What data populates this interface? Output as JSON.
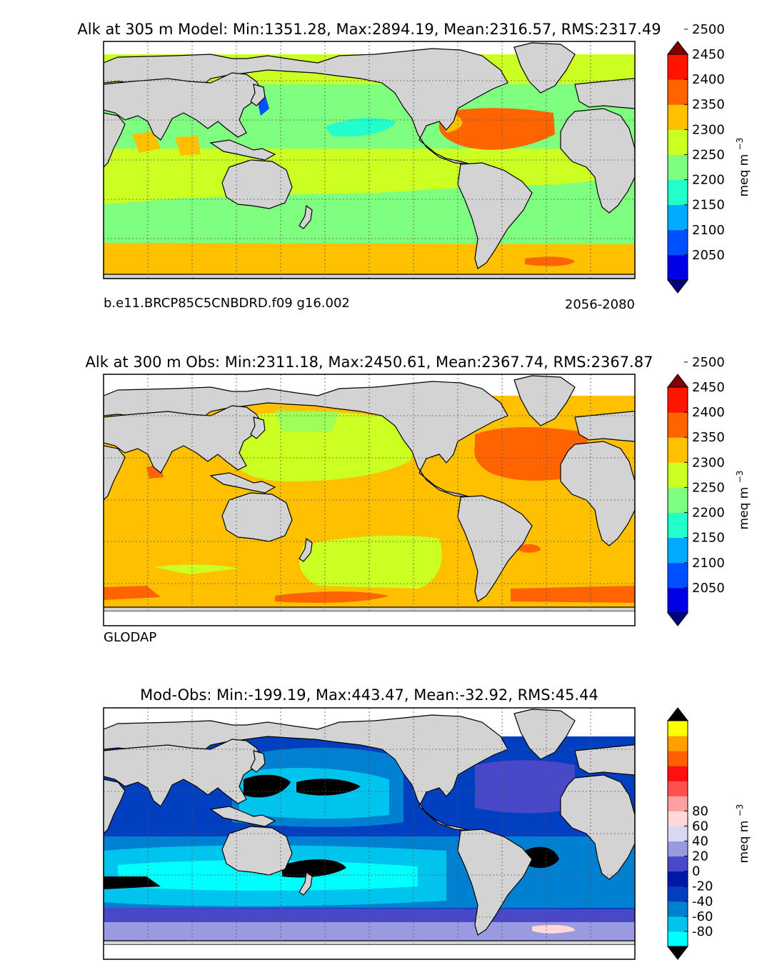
{
  "panels": [
    {
      "title": "Alk at 305 m Model: Min:1351.28, Max:2894.19, Mean:2316.57, RMS:2317.49",
      "left_note": "b.e11.BRCP85C5CNBDRD.f09 g16.002",
      "right_note": "2056-2080",
      "colorbar": {
        "label": "meq m",
        "label_exp": "−3",
        "ticks": [
          "2050",
          "2100",
          "2150",
          "2200",
          "2250",
          "2300",
          "2350",
          "2400",
          "2450",
          "2500"
        ],
        "colors": [
          "#00007f",
          "#0000e6",
          "#0050ff",
          "#00aaff",
          "#22ffcc",
          "#7fff7f",
          "#ccff22",
          "#ffc000",
          "#ff6400",
          "#ff1400",
          "#7f0000"
        ]
      }
    },
    {
      "title": "Alk at 300 m Obs: Min:2311.18, Max:2450.61, Mean:2367.74, RMS:2367.87",
      "left_note": "GLODAP",
      "right_note": "",
      "colorbar": {
        "label": "meq m",
        "label_exp": "−3",
        "ticks": [
          "2050",
          "2100",
          "2150",
          "2200",
          "2250",
          "2300",
          "2350",
          "2400",
          "2450",
          "2500"
        ],
        "colors": [
          "#00007f",
          "#0000e6",
          "#0050ff",
          "#00aaff",
          "#22ffcc",
          "#7fff7f",
          "#ccff22",
          "#ffc000",
          "#ff6400",
          "#ff1400",
          "#7f0000"
        ]
      }
    },
    {
      "title": "Mod-Obs: Min:-199.19, Max:443.47, Mean:-32.92, RMS:45.44",
      "left_note": "",
      "right_note": "",
      "colorbar": {
        "label": "meq m",
        "label_exp": "−3",
        "ticks": [
          "-80",
          "-60",
          "-40",
          "-20",
          "0",
          "20",
          "40",
          "60",
          "80"
        ],
        "colors": [
          "#000000",
          "#00ffff",
          "#00c3ee",
          "#0080d0",
          "#0040c0",
          "#0018a8",
          "#4848c8",
          "#9a9ae0",
          "#d8d8f2",
          "#ffd8d8",
          "#ffa0a0",
          "#ff5050",
          "#ff1010",
          "#ff6000",
          "#ffa000",
          "#ffff00",
          "#000000"
        ]
      }
    }
  ],
  "chart_data": [
    {
      "type": "heatmap",
      "title": "Alk at 305 m Model: Min:1351.28, Max:2894.19, Mean:2316.57, RMS:2317.49",
      "stats": {
        "min": 1351.28,
        "max": 2894.19,
        "mean": 2316.57,
        "rms": 2317.49
      },
      "depth_m": 305,
      "case": "b.e11.BRCP85C5CNBDRD.f09 g16.002",
      "period": "2056-2080",
      "colorbar_ticks": [
        2050,
        2100,
        2150,
        2200,
        2250,
        2300,
        2350,
        2400,
        2450,
        2500
      ],
      "colorbar_label": "meq m^-3",
      "grid": true
    },
    {
      "type": "heatmap",
      "title": "Alk at 300 m Obs: Min:2311.18, Max:2450.61, Mean:2367.74, RMS:2367.87",
      "stats": {
        "min": 2311.18,
        "max": 2450.61,
        "mean": 2367.74,
        "rms": 2367.87
      },
      "depth_m": 300,
      "source": "GLODAP",
      "colorbar_ticks": [
        2050,
        2100,
        2150,
        2200,
        2250,
        2300,
        2350,
        2400,
        2450,
        2500
      ],
      "colorbar_label": "meq m^-3",
      "grid": true
    },
    {
      "type": "heatmap",
      "title": "Mod-Obs: Min:-199.19, Max:443.47, Mean:-32.92, RMS:45.44",
      "stats": {
        "min": -199.19,
        "max": 443.47,
        "mean": -32.92,
        "rms": 45.44
      },
      "colorbar_ticks": [
        -80,
        -60,
        -40,
        -20,
        0,
        20,
        40,
        60,
        80
      ],
      "colorbar_label": "meq m^-3",
      "grid": true
    }
  ]
}
